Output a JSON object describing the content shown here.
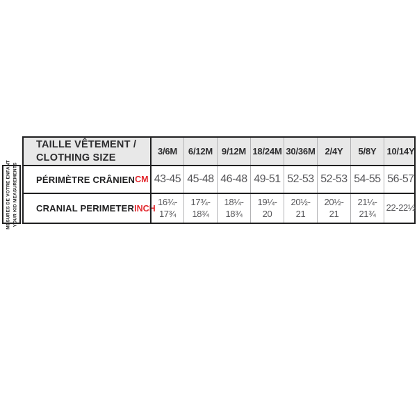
{
  "side_label": {
    "line1": "MESURES DE VOTRE ENFANT",
    "line2": "YOUR KID MEASUREMENTS"
  },
  "table": {
    "header": {
      "title_line1": "TAILLE VÊTEMENT /",
      "title_line2": "CLOTHING SIZE"
    },
    "columns": [
      "3/6M",
      "6/12M",
      "9/12M",
      "18/24M",
      "30/36M",
      "2/4Y",
      "5/8Y",
      "10/14Y"
    ],
    "rows": [
      {
        "label": "PÉRIMÈTRE CRÂNIEN",
        "unit": "CM",
        "values": [
          "43-45",
          "45-48",
          "46-48",
          "49-51",
          "52-53",
          "52-53",
          "54-55",
          "56-57"
        ]
      },
      {
        "label": "CRANIAL PERIMETER",
        "unit": "INCH",
        "values": [
          [
            "16¾-",
            "17¾"
          ],
          [
            "17¾-",
            "18¾"
          ],
          [
            "18¼-",
            "18¾"
          ],
          [
            "19¼-",
            "20"
          ],
          [
            "20½-",
            "21"
          ],
          [
            "20½-",
            "21"
          ],
          [
            "21¼-",
            "21¾"
          ],
          [
            "22-22½"
          ]
        ]
      }
    ]
  },
  "colors": {
    "accent_red": "#e2262c",
    "header_bg": "#e8e8e8",
    "border_dark": "#1f1f20",
    "value_gray": "#58585b"
  }
}
